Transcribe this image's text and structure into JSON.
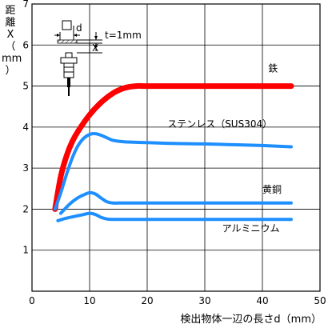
{
  "chart_data": {
    "type": "line",
    "xlabel": "検出物体一辺の長さd（mm）",
    "ylabel": [
      "距",
      "離",
      "X",
      "（",
      "mm",
      "）"
    ],
    "xlim": [
      0,
      50
    ],
    "ylim": [
      0,
      7
    ],
    "xticks": [
      0,
      10,
      20,
      30,
      40,
      50
    ],
    "yticks": [
      1,
      2,
      3,
      4,
      5,
      6,
      7
    ],
    "grid": true,
    "annotation": {
      "thickness": "t=1mm",
      "d_label": "d",
      "x_label": "X"
    },
    "series": [
      {
        "name": "鉄",
        "color": "#ff0000",
        "x": [
          4,
          5,
          6,
          7,
          8,
          10,
          12,
          14,
          16,
          18,
          20,
          25,
          30,
          35,
          40,
          45
        ],
        "y": [
          2.0,
          2.8,
          3.3,
          3.65,
          3.9,
          4.3,
          4.6,
          4.82,
          4.95,
          5.0,
          5.0,
          5.0,
          5.0,
          5.0,
          5.0,
          5.0
        ]
      },
      {
        "name": "ステンレス（SUS304）",
        "color": "#1e8fff",
        "x": [
          4,
          5,
          6,
          7,
          8,
          9,
          10,
          11,
          12,
          13,
          14,
          16,
          20,
          25,
          30,
          35,
          40,
          45
        ],
        "y": [
          2.0,
          2.4,
          2.85,
          3.25,
          3.55,
          3.73,
          3.82,
          3.84,
          3.8,
          3.74,
          3.68,
          3.64,
          3.62,
          3.6,
          3.59,
          3.57,
          3.55,
          3.52
        ]
      },
      {
        "name": "黄銅",
        "color": "#1e8fff",
        "x": [
          5,
          6,
          7,
          8,
          9,
          10,
          11,
          12,
          13,
          14,
          16,
          20,
          30,
          40,
          45
        ],
        "y": [
          1.9,
          2.05,
          2.18,
          2.28,
          2.35,
          2.4,
          2.37,
          2.27,
          2.18,
          2.15,
          2.15,
          2.15,
          2.15,
          2.15,
          2.15
        ]
      },
      {
        "name": "アルミニウム",
        "color": "#1e8fff",
        "x": [
          4.5,
          6,
          8,
          9,
          10,
          11,
          12,
          13,
          14,
          16,
          20,
          30,
          40,
          45
        ],
        "y": [
          1.72,
          1.78,
          1.84,
          1.87,
          1.9,
          1.87,
          1.8,
          1.76,
          1.75,
          1.75,
          1.75,
          1.75,
          1.75,
          1.75
        ]
      }
    ],
    "series_labels": {
      "鉄": {
        "x": 41,
        "y": 5.35
      },
      "ステンレス（SUS304）": {
        "x": 23.5,
        "y": 4.0
      },
      "黄銅": {
        "x": 40,
        "y": 2.4
      },
      "アルミニウム": {
        "x": 33,
        "y": 1.45
      }
    }
  }
}
